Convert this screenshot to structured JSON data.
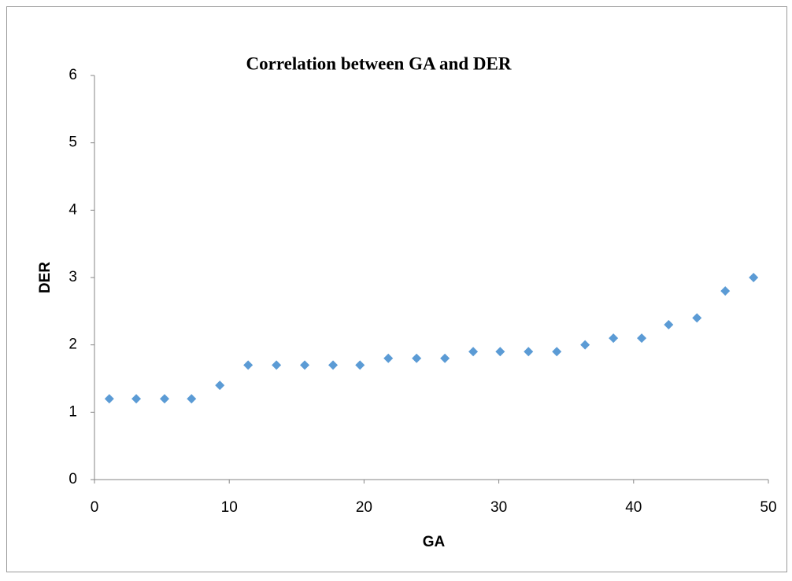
{
  "chart_data": {
    "type": "scatter",
    "title": "Correlation between GA and DER",
    "x_label": "GA",
    "y_label": "DER",
    "series": [
      {
        "name": "DER",
        "color": "#5b9bd5",
        "x": [
          1.1,
          3.1,
          5.2,
          7.2,
          9.3,
          11.4,
          13.5,
          15.6,
          17.7,
          19.7,
          21.8,
          23.9,
          26,
          28.1,
          30.1,
          32.2,
          34.3,
          36.4,
          38.5,
          40.6,
          42.6,
          44.7,
          46.8,
          48.9
        ],
        "values": [
          1.2,
          1.2,
          1.2,
          1.2,
          1.4,
          1.7,
          1.7,
          1.7,
          1.7,
          1.7,
          1.8,
          1.8,
          1.8,
          1.9,
          1.9,
          1.9,
          1.9,
          2,
          2.1,
          2.1,
          2.3,
          2.4,
          2.8,
          3
        ]
      }
    ],
    "xlim": [
      0,
      50
    ],
    "xticks": [
      0,
      10,
      20,
      30,
      40,
      50
    ],
    "ylim": [
      0,
      6
    ],
    "yticks": [
      0,
      1,
      2,
      3,
      4,
      5,
      6
    ]
  }
}
